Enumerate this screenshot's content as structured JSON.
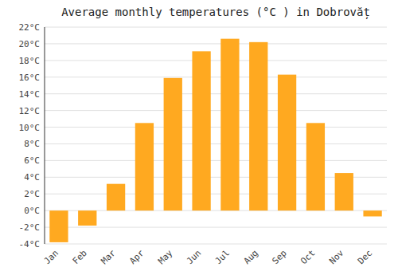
{
  "chart_data": {
    "type": "bar",
    "title": "Average monthly temperatures (°C ) in Dobrovăț",
    "categories": [
      "Jan",
      "Feb",
      "Mar",
      "Apr",
      "May",
      "Jun",
      "Jul",
      "Aug",
      "Sep",
      "Oct",
      "Nov",
      "Dec"
    ],
    "values": [
      -3.8,
      -1.8,
      3.2,
      10.5,
      15.9,
      19.1,
      20.6,
      20.2,
      16.3,
      10.5,
      4.5,
      -0.7
    ],
    "color": "#FFA920",
    "ylim": [
      -4,
      22
    ],
    "yticks": [
      {
        "value": -4,
        "label": "-4°C"
      },
      {
        "value": -2,
        "label": "-2°C"
      },
      {
        "value": 0,
        "label": "0°C"
      },
      {
        "value": 2,
        "label": "2°C"
      },
      {
        "value": 4,
        "label": "4°C"
      },
      {
        "value": 6,
        "label": "6°C"
      },
      {
        "value": 8,
        "label": "8°C"
      },
      {
        "value": 10,
        "label": "10°C"
      },
      {
        "value": 12,
        "label": "12°C"
      },
      {
        "value": 14,
        "label": "14°C"
      },
      {
        "value": 16,
        "label": "16°C"
      },
      {
        "value": 18,
        "label": "18°C"
      },
      {
        "value": 20,
        "label": "20°C"
      },
      {
        "value": 22,
        "label": "22°C"
      }
    ],
    "grid": true
  }
}
